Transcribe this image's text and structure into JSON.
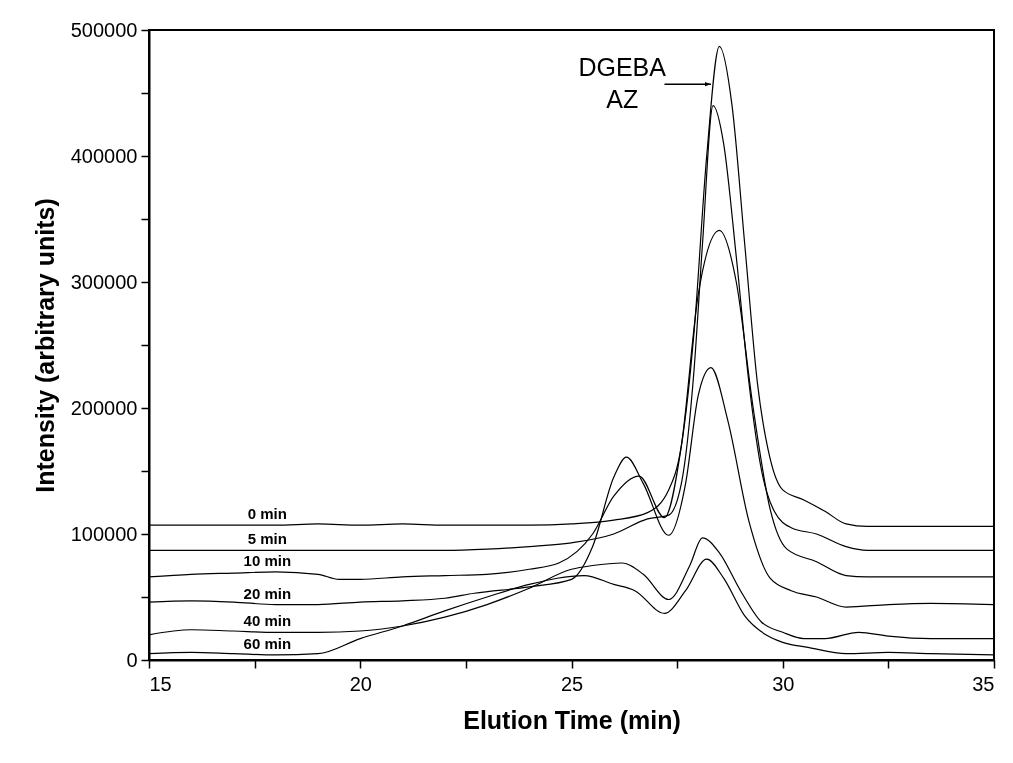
{
  "chart_data": {
    "type": "line",
    "xlabel": "Elution Time (min)",
    "ylabel": "Intensity (arbitrary units)",
    "xlim": [
      15,
      35
    ],
    "ylim": [
      0,
      500000
    ],
    "xticks": [
      15,
      {
        "value": 17.5,
        "label": null
      },
      20,
      {
        "value": 22.5,
        "label": null
      },
      25,
      {
        "value": 27.5,
        "label": null
      },
      30,
      {
        "value": 32.5,
        "label": null
      },
      35
    ],
    "yticks": [
      0,
      {
        "value": 50000,
        "label": null
      },
      100000,
      {
        "value": 150000,
        "label": null
      },
      200000,
      {
        "value": 250000,
        "label": null
      },
      300000,
      {
        "value": 350000,
        "label": null
      },
      400000,
      {
        "value": 450000,
        "label": null
      },
      500000
    ],
    "grid": false,
    "legend": false,
    "line_style": "solid",
    "marker": "none",
    "annotations": [
      {
        "text": "DGEBA\nAZ",
        "x": 28.3,
        "y": 457000
      }
    ],
    "series": [
      {
        "name": "0 min",
        "color": "#000000",
        "x": [
          15,
          16,
          17,
          18,
          19,
          20,
          21,
          22,
          23,
          24,
          25,
          26,
          26.8,
          27.3,
          27.6,
          27.9,
          28.2,
          28.5,
          28.8,
          29.1,
          29.4,
          29.7,
          30,
          30.5,
          31,
          31.5,
          32,
          33,
          35
        ],
        "values": [
          107000,
          107000,
          107000,
          107000,
          108000,
          107000,
          108000,
          107000,
          107000,
          107000,
          108000,
          111000,
          117000,
          135000,
          170000,
          260000,
          400000,
          487000,
          440000,
          330000,
          220000,
          160000,
          135000,
          127000,
          118000,
          108000,
          106000,
          106000,
          106000
        ]
      },
      {
        "name": "5 min",
        "color": "#000000",
        "x": [
          15,
          17,
          20,
          22,
          23,
          24,
          25,
          26,
          26.8,
          27.3,
          27.6,
          27.9,
          28.1,
          28.35,
          28.6,
          28.9,
          29.2,
          29.5,
          29.8,
          30.2,
          30.8,
          31.5,
          32,
          35
        ],
        "values": [
          87000,
          87000,
          87000,
          87000,
          88000,
          90000,
          93000,
          100000,
          112000,
          115000,
          140000,
          230000,
          330000,
          440000,
          410000,
          320000,
          220000,
          150000,
          118000,
          105000,
          100000,
          90000,
          87000,
          87000
        ]
      },
      {
        "name": "10 min",
        "color": "#000000",
        "x": [
          15,
          16,
          17,
          18,
          19,
          19.5,
          20,
          21,
          22,
          23,
          24,
          24.7,
          25.5,
          26,
          26.6,
          27.2,
          27.6,
          28,
          28.5,
          28.9,
          29.3,
          29.7,
          30.1,
          30.8,
          31.5,
          32,
          35
        ],
        "values": [
          66000,
          68000,
          69000,
          70000,
          68000,
          64000,
          64000,
          66000,
          67000,
          68000,
          72000,
          77000,
          100000,
          130000,
          146000,
          113000,
          170000,
          290000,
          341000,
          300000,
          200000,
          120000,
          88000,
          78000,
          67000,
          66000,
          66000
        ]
      },
      {
        "name": "20 min",
        "color": "#000000",
        "x": [
          15,
          16,
          17,
          18,
          19,
          20,
          21,
          22,
          22.7,
          24,
          25,
          25.5,
          26,
          26.3,
          26.7,
          27.3,
          27.7,
          28,
          28.3,
          28.7,
          29.2,
          29.7,
          30.2,
          30.8,
          31.5,
          32.5,
          33.5,
          35
        ],
        "values": [
          46000,
          47000,
          46000,
          44000,
          44000,
          46000,
          47000,
          49000,
          53000,
          58000,
          64000,
          90000,
          145000,
          161000,
          140000,
          99000,
          140000,
          210000,
          232000,
          190000,
          110000,
          65000,
          55000,
          50000,
          42000,
          44000,
          45000,
          44000
        ]
      },
      {
        "name": "40 min",
        "color": "#000000",
        "x": [
          15,
          16,
          17,
          18,
          19,
          20,
          21,
          22,
          23,
          24,
          25,
          25.5,
          26.2,
          26.7,
          27.3,
          27.8,
          28.1,
          28.5,
          29,
          29.5,
          30,
          30.5,
          31,
          31.8,
          32.5,
          33.5,
          35
        ],
        "values": [
          20000,
          24000,
          23000,
          22000,
          22000,
          23000,
          27000,
          34000,
          44000,
          57000,
          72000,
          75000,
          77000,
          68000,
          48000,
          75000,
          97000,
          85000,
          55000,
          30000,
          22000,
          17000,
          17000,
          22000,
          19000,
          17000,
          17000
        ]
      },
      {
        "name": "60 min",
        "color": "#000000",
        "x": [
          15,
          16,
          17,
          18,
          19,
          20,
          21,
          22,
          23,
          24,
          25.3,
          26,
          26.5,
          27.2,
          27.7,
          28.2,
          28.6,
          29.1,
          29.6,
          30,
          30.6,
          31.5,
          32.5,
          33.5,
          35
        ],
        "values": [
          5000,
          6000,
          5000,
          4000,
          5000,
          17000,
          27000,
          39000,
          50000,
          60000,
          67000,
          60000,
          55000,
          37000,
          55000,
          80000,
          65000,
          35000,
          20000,
          14000,
          10000,
          5000,
          6000,
          5000,
          4000
        ]
      }
    ]
  }
}
